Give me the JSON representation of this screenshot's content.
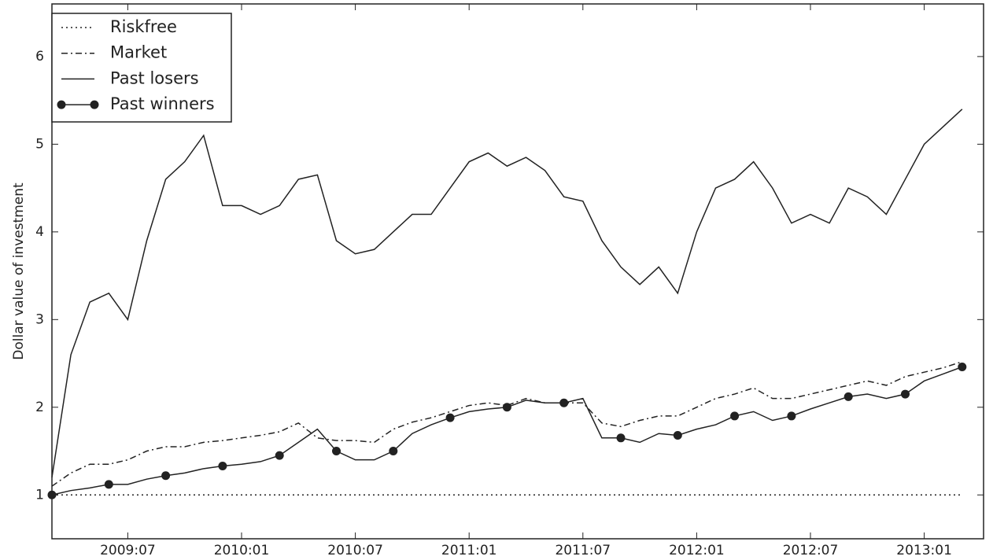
{
  "chart_data": {
    "type": "line",
    "y_label": "Dollar value of investment",
    "x": [
      "2009:03",
      "2009:04",
      "2009:05",
      "2009:06",
      "2009:07",
      "2009:08",
      "2009:09",
      "2009:10",
      "2009:11",
      "2009:12",
      "2010:01",
      "2010:02",
      "2010:03",
      "2010:04",
      "2010:05",
      "2010:06",
      "2010:07",
      "2010:08",
      "2010:09",
      "2010:10",
      "2010:11",
      "2010:12",
      "2011:01",
      "2011:02",
      "2011:03",
      "2011:04",
      "2011:05",
      "2011:06",
      "2011:07",
      "2011:08",
      "2011:09",
      "2011:10",
      "2011:11",
      "2011:12",
      "2012:01",
      "2012:02",
      "2012:03",
      "2012:04",
      "2012:05",
      "2012:06",
      "2012:07",
      "2012:08",
      "2012:09",
      "2012:10",
      "2012:11",
      "2012:12",
      "2013:01",
      "2013:02",
      "2013:03"
    ],
    "xticks": [
      "2009:07",
      "2010:01",
      "2010:07",
      "2011:01",
      "2011:07",
      "2012:01",
      "2012:07",
      "2013:01"
    ],
    "ylim": [
      0.5,
      6.6
    ],
    "yticks": [
      1,
      2,
      3,
      4,
      5,
      6
    ],
    "legend": "upper left",
    "series": [
      {
        "name": "Riskfree",
        "color": "#222222",
        "dash": "dotted",
        "values": [
          1,
          1,
          1,
          1,
          1,
          1,
          1,
          1,
          1,
          1,
          1,
          1,
          1,
          1,
          1,
          1,
          1,
          1,
          1,
          1,
          1,
          1,
          1,
          1,
          1,
          1,
          1,
          1,
          1,
          1,
          1,
          1,
          1,
          1,
          1,
          1,
          1,
          1,
          1,
          1,
          1,
          1,
          1,
          1,
          1,
          1,
          1,
          1,
          1
        ]
      },
      {
        "name": "Market",
        "color": "#222222",
        "dash": "dashdot",
        "values": [
          1.1,
          1.25,
          1.35,
          1.35,
          1.4,
          1.5,
          1.55,
          1.55,
          1.6,
          1.62,
          1.65,
          1.68,
          1.72,
          1.82,
          1.65,
          1.62,
          1.62,
          1.6,
          1.75,
          1.83,
          1.88,
          1.95,
          2.02,
          2.05,
          2.02,
          2.1,
          2.05,
          2.05,
          2.05,
          1.82,
          1.78,
          1.85,
          1.9,
          1.9,
          2.0,
          2.1,
          2.15,
          2.22,
          2.1,
          2.1,
          2.15,
          2.2,
          2.25,
          2.3,
          2.25,
          2.35,
          2.4,
          2.45,
          2.52
        ]
      },
      {
        "name": "Past losers",
        "color": "#222222",
        "dash": "solid",
        "values": [
          1.2,
          2.6,
          3.2,
          3.3,
          3.0,
          3.9,
          4.6,
          4.8,
          5.1,
          4.3,
          4.3,
          4.2,
          4.3,
          4.6,
          4.65,
          3.9,
          3.75,
          3.8,
          4.0,
          4.2,
          4.2,
          4.5,
          4.8,
          4.9,
          4.75,
          4.85,
          4.7,
          4.4,
          4.35,
          3.9,
          3.6,
          3.4,
          3.6,
          3.3,
          4.0,
          4.5,
          4.6,
          4.8,
          4.5,
          4.1,
          4.2,
          4.1,
          4.5,
          4.4,
          4.2,
          4.6,
          5.0,
          5.2,
          5.4
        ]
      },
      {
        "name": "Past winners",
        "color": "#222222",
        "dash": "solid",
        "marker": "circle",
        "marker_every": 3,
        "values": [
          1.0,
          1.05,
          1.08,
          1.12,
          1.12,
          1.18,
          1.22,
          1.25,
          1.3,
          1.33,
          1.35,
          1.38,
          1.45,
          1.6,
          1.75,
          1.5,
          1.4,
          1.4,
          1.5,
          1.7,
          1.8,
          1.88,
          1.95,
          1.98,
          2.0,
          2.08,
          2.05,
          2.05,
          2.1,
          1.65,
          1.65,
          1.6,
          1.7,
          1.68,
          1.75,
          1.8,
          1.9,
          1.95,
          1.85,
          1.9,
          1.98,
          2.05,
          2.12,
          2.15,
          2.1,
          2.15,
          2.3,
          2.38,
          2.46
        ]
      }
    ]
  }
}
